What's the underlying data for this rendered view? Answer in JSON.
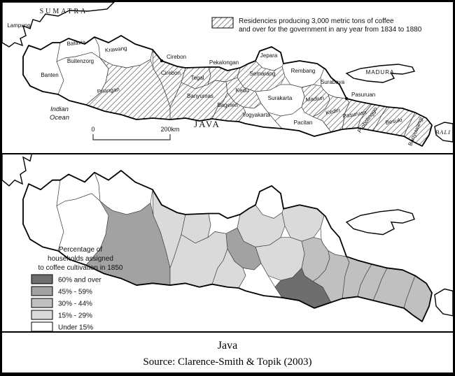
{
  "window": {
    "caption_title": "Java",
    "caption_source": "Source: Clarence-Smith & Topik (2003)"
  },
  "map1": {
    "legend_line1": "Residencies producing 3,000 metric tons of coffee",
    "legend_line2": "and over for the government in any year from 1834 to 1880",
    "labels": {
      "sumatra": "SUMATRA",
      "indian_ocean_1": "Indian",
      "indian_ocean_2": "Ocean",
      "java": "JAVA"
    },
    "scale": {
      "zero": "0",
      "two_hundred": "200km"
    },
    "towns": [
      {
        "name": "Cirebon"
      },
      {
        "name": "Pasuruan"
      }
    ]
  },
  "map2": {
    "legend_title_1": "Percentage of",
    "legend_title_2": "households assigned",
    "legend_title_3": "to coffee cultivation in 1850",
    "categories": [
      {
        "key": "cat60",
        "label": "60% and over",
        "color": "#6e6e6e"
      },
      {
        "key": "cat45",
        "label": "45% - 59%",
        "color": "#a2a2a2"
      },
      {
        "key": "cat30",
        "label": "30% - 44%",
        "color": "#c0c0c0"
      },
      {
        "key": "cat15",
        "label": "15% - 29%",
        "color": "#dadada"
      },
      {
        "key": "under15",
        "label": "Under 15%",
        "color": "#ffffff"
      }
    ]
  },
  "regions": [
    {
      "id": "sumatra",
      "label": "Lampung",
      "hatched": false,
      "category": "under15"
    },
    {
      "id": "banten",
      "label": "Banten",
      "hatched": false,
      "category": "under15"
    },
    {
      "id": "batavia",
      "label": "Batavia",
      "hatched": false,
      "category": "under15"
    },
    {
      "id": "buitenzorg",
      "label": "Buitenzorg",
      "hatched": false,
      "category": "under15"
    },
    {
      "id": "krawang",
      "label": "Krawang",
      "hatched": false,
      "category": "under15"
    },
    {
      "id": "priangan",
      "label": "Priangan",
      "hatched": true,
      "category": "cat45"
    },
    {
      "id": "cirebon",
      "label": "Cirebon",
      "hatched": true,
      "category": "cat15"
    },
    {
      "id": "tegal",
      "label": "Tegal",
      "hatched": true,
      "category": "cat15"
    },
    {
      "id": "pekalongan",
      "label": "Pekalongan",
      "hatched": true,
      "category": "under15"
    },
    {
      "id": "banyumas",
      "label": "Banyumas",
      "hatched": true,
      "category": "cat15"
    },
    {
      "id": "kedu",
      "label": "Kedu",
      "hatched": true,
      "category": "cat45"
    },
    {
      "id": "bagelen",
      "label": "Bagelen",
      "hatched": true,
      "category": "cat15"
    },
    {
      "id": "yogyakarta",
      "label": "Yogyakarta",
      "hatched": false,
      "category": "under15"
    },
    {
      "id": "semarang",
      "label": "Semarang",
      "hatched": true,
      "category": "cat15"
    },
    {
      "id": "jepara",
      "label": "Jepara",
      "hatched": false,
      "category": "under15"
    },
    {
      "id": "rembang",
      "label": "Rembang",
      "hatched": false,
      "category": "cat15"
    },
    {
      "id": "surakarta",
      "label": "Surakarta",
      "hatched": false,
      "category": "cat15"
    },
    {
      "id": "madiun",
      "label": "Madiun",
      "hatched": true,
      "category": "cat30"
    },
    {
      "id": "pacitan",
      "label": "Pacitan",
      "hatched": false,
      "category": "cat60"
    },
    {
      "id": "surabaya",
      "label": "Surabaya",
      "hatched": false,
      "category": "under15"
    },
    {
      "id": "kediri",
      "label": "Kediri",
      "hatched": true,
      "category": "cat30"
    },
    {
      "id": "pasuruan",
      "label": "Pasuruan",
      "hatched": true,
      "category": "cat30"
    },
    {
      "id": "probolinggo",
      "label": "Probolinggo",
      "hatched": true,
      "category": "cat30"
    },
    {
      "id": "besuki",
      "label": "Besuki",
      "hatched": true,
      "category": "cat30"
    },
    {
      "id": "banyuwangi",
      "label": "Banyuwangi",
      "hatched": true,
      "category": "cat30"
    },
    {
      "id": "madura",
      "label": "MADURA",
      "hatched": false,
      "category": "under15"
    },
    {
      "id": "bali",
      "label": "BALI",
      "hatched": false,
      "category": "under15"
    }
  ]
}
